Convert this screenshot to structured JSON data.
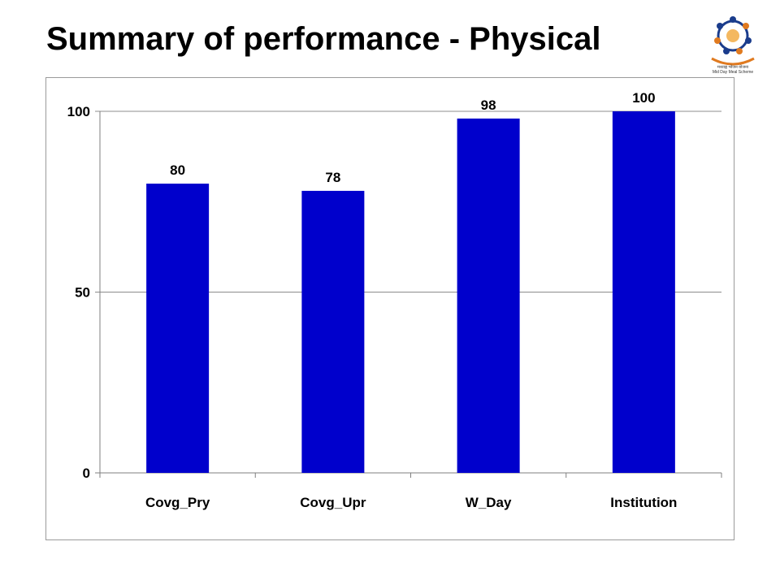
{
  "title": "Summary of performance - Physical",
  "logo": {
    "icon": "mid-day-meal-scheme-logo",
    "caption_line1": "मध्याह्न भोजन योजना",
    "caption_line2": "Mid Day Meal Scheme"
  },
  "chart_data": {
    "type": "bar",
    "title": "",
    "xlabel": "",
    "ylabel": "",
    "categories": [
      "Covg_Pry",
      "Covg_Upr",
      "W_Day",
      "Institution"
    ],
    "values": [
      80,
      78,
      98,
      100
    ],
    "ylim": [
      0,
      100
    ],
    "yticks": [
      "0",
      "50",
      "100"
    ],
    "grid": true,
    "bar_color": "#0000cc"
  }
}
